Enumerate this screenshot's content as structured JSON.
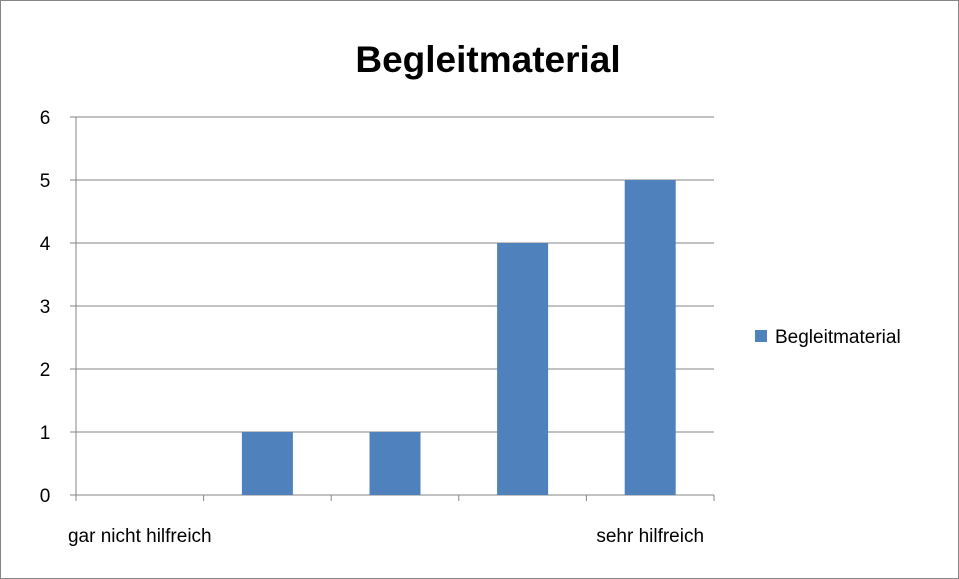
{
  "chart_data": {
    "type": "bar",
    "title": "Begleitmaterial",
    "xlabel": "",
    "ylabel": "",
    "categories": [
      "gar nicht hilfreich",
      "",
      "",
      "",
      "sehr hilfreich"
    ],
    "series": [
      {
        "name": "Begleitmaterial",
        "values": [
          0,
          1,
          1,
          4,
          5
        ],
        "color": "#4F81BD"
      }
    ],
    "ylim": [
      0,
      6
    ],
    "yticks": [
      "0",
      "1",
      "2",
      "3",
      "4",
      "5",
      "6"
    ],
    "grid": true,
    "legend_position": "right",
    "colors": {
      "gridline": "#868686",
      "axis": "#868686",
      "border": "#868686"
    }
  }
}
